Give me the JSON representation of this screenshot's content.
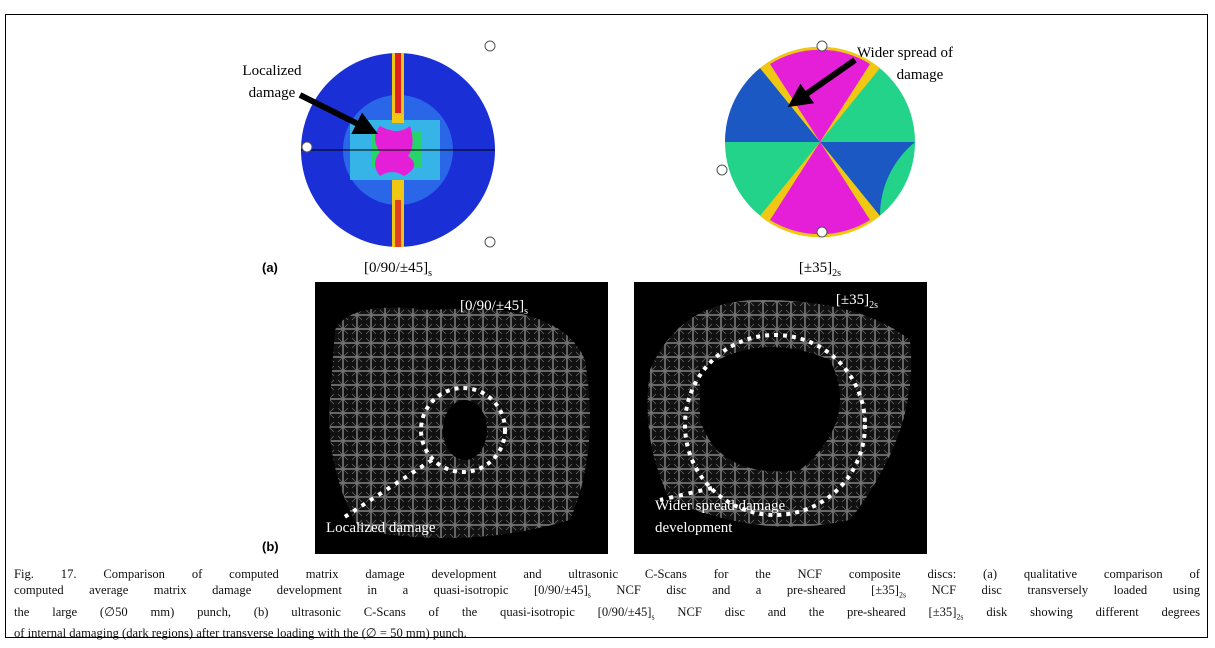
{
  "panel_a": {
    "label": "(a)",
    "plots": [
      {
        "callout": [
          "Localized",
          "damage"
        ],
        "layup": "[0/90/±45]",
        "layup_sub": "s"
      },
      {
        "callout": [
          "Wider spread of",
          "damage"
        ],
        "layup": "[±35]",
        "layup_sub": "2s"
      }
    ]
  },
  "panel_b": {
    "label": "(b)",
    "scans": [
      {
        "layup": "[0/90/±45]",
        "layup_sub": "s",
        "callout": [
          "Localized damage"
        ]
      },
      {
        "layup": "[±35]",
        "layup_sub": "2s",
        "callout": [
          "Wider spread damage",
          "development"
        ]
      }
    ]
  },
  "caption": {
    "lines": [
      [
        "Fig. 17. Comparison of computed matrix damage development and ultrasonic C-Scans for the NCF composite discs: (a) qualitative comparison of"
      ],
      [
        "computed average matrix damage development in a quasi-isotropic [0/90/±45]",
        {
          "sub": "s"
        },
        " NCF disc and a pre-sheared [±35]",
        {
          "sub": "2s"
        },
        " NCF disc transversely loaded using"
      ],
      [
        "the large (∅50 mm) punch, (b) ultrasonic C-Scans of the quasi-isotropic [0/90/±45]",
        {
          "sub": "s"
        },
        " NCF disc and the pre-sheared [±35]",
        {
          "sub": "2s"
        },
        " disk showing different degrees"
      ],
      [
        "of internal damaging (dark regions) after transverse loading with the (∅ = 50 mm) punch."
      ]
    ]
  }
}
